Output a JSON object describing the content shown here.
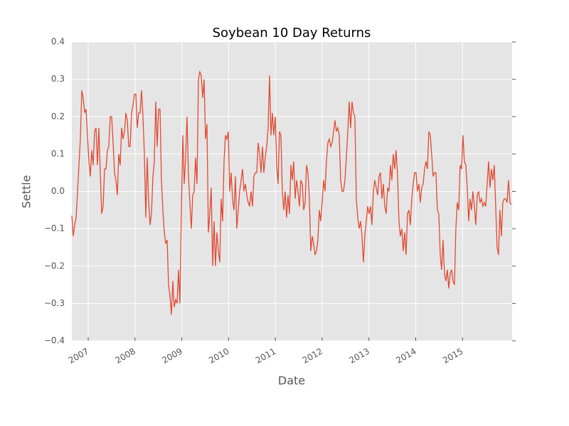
{
  "chart_data": {
    "type": "line",
    "title": "Soybean 10 Day Returns",
    "xlabel": "Date",
    "ylabel": "Settle",
    "color": "#e24a33",
    "grid": true,
    "x": [
      2006.65,
      2006.68,
      2006.711,
      2006.741,
      2006.772,
      2006.802,
      2006.832,
      2006.863,
      2006.893,
      2006.924,
      2006.954,
      2006.984,
      2007.015,
      2007.045,
      2007.076,
      2007.106,
      2007.136,
      2007.167,
      2007.197,
      2007.228,
      2007.258,
      2007.288,
      2007.319,
      2007.349,
      2007.38,
      2007.41,
      2007.44,
      2007.471,
      2007.501,
      2007.532,
      2007.562,
      2007.592,
      2007.623,
      2007.653,
      2007.684,
      2007.714,
      2007.744,
      2007.775,
      2007.805,
      2007.836,
      2007.866,
      2007.896,
      2007.927,
      2007.957,
      2007.988,
      2008.018,
      2008.048,
      2008.079,
      2008.109,
      2008.14,
      2008.17,
      2008.2,
      2008.231,
      2008.261,
      2008.292,
      2008.322,
      2008.352,
      2008.383,
      2008.413,
      2008.444,
      2008.474,
      2008.504,
      2008.535,
      2008.565,
      2008.596,
      2008.626,
      2008.656,
      2008.687,
      2008.717,
      2008.748,
      2008.778,
      2008.808,
      2008.839,
      2008.869,
      2008.9,
      2008.93,
      2008.96,
      2008.991,
      2009.021,
      2009.052,
      2009.082,
      2009.112,
      2009.143,
      2009.173,
      2009.204,
      2009.234,
      2009.264,
      2009.295,
      2009.325,
      2009.356,
      2009.386,
      2009.416,
      2009.447,
      2009.477,
      2009.508,
      2009.538,
      2009.568,
      2009.599,
      2009.629,
      2009.66,
      2009.69,
      2009.72,
      2009.751,
      2009.781,
      2009.812,
      2009.842,
      2009.872,
      2009.903,
      2009.933,
      2009.964,
      2009.994,
      2010.024,
      2010.055,
      2010.085,
      2010.116,
      2010.146,
      2010.176,
      2010.207,
      2010.237,
      2010.268,
      2010.298,
      2010.328,
      2010.359,
      2010.389,
      2010.42,
      2010.45,
      2010.48,
      2010.511,
      2010.541,
      2010.572,
      2010.602,
      2010.632,
      2010.663,
      2010.693,
      2010.724,
      2010.754,
      2010.784,
      2010.815,
      2010.845,
      2010.876,
      2010.906,
      2010.936,
      2010.967,
      2010.997,
      2011.028,
      2011.058,
      2011.088,
      2011.119,
      2011.149,
      2011.18,
      2011.21,
      2011.24,
      2011.271,
      2011.301,
      2011.332,
      2011.362,
      2011.392,
      2011.423,
      2011.453,
      2011.484,
      2011.514,
      2011.544,
      2011.575,
      2011.605,
      2011.636,
      2011.666,
      2011.696,
      2011.727,
      2011.757,
      2011.788,
      2011.818,
      2011.848,
      2011.879,
      2011.909,
      2011.94,
      2011.97,
      2012.0,
      2012.031,
      2012.061,
      2012.092,
      2012.122,
      2012.152,
      2012.183,
      2012.213,
      2012.244,
      2012.274,
      2012.304,
      2012.335,
      2012.365,
      2012.396,
      2012.426,
      2012.456,
      2012.487,
      2012.517,
      2012.548,
      2012.578,
      2012.608,
      2012.639,
      2012.669,
      2012.7,
      2012.73,
      2012.76,
      2012.791,
      2012.821,
      2012.852,
      2012.882,
      2012.912,
      2012.943,
      2012.973,
      2013.004,
      2013.034,
      2013.064,
      2013.095,
      2013.125,
      2013.156,
      2013.186,
      2013.216,
      2013.247,
      2013.277,
      2013.308,
      2013.338,
      2013.368,
      2013.399,
      2013.429,
      2013.46,
      2013.49,
      2013.52,
      2013.551,
      2013.581,
      2013.612,
      2013.642,
      2013.672,
      2013.703,
      2013.733,
      2013.764,
      2013.794,
      2013.824,
      2013.855,
      2013.885,
      2013.916,
      2013.946,
      2013.976,
      2014.007,
      2014.037,
      2014.068,
      2014.098,
      2014.128,
      2014.159,
      2014.189,
      2014.22,
      2014.25,
      2014.28,
      2014.311,
      2014.341,
      2014.372,
      2014.402,
      2014.432,
      2014.463,
      2014.493,
      2014.524,
      2014.554,
      2014.584,
      2014.615,
      2014.645,
      2014.676,
      2014.706,
      2014.736,
      2014.767,
      2014.797,
      2014.828,
      2014.858,
      2014.888,
      2014.919,
      2014.949,
      2014.98,
      2015.01,
      2015.04,
      2015.071,
      2015.101,
      2015.132,
      2015.162,
      2015.192,
      2015.223,
      2015.253,
      2015.284,
      2015.314,
      2015.344,
      2015.375,
      2015.405,
      2015.436,
      2015.466,
      2015.496,
      2015.527,
      2015.557,
      2015.588,
      2015.618,
      2015.648,
      2015.679,
      2015.709,
      2015.74,
      2015.77,
      2015.8,
      2015.831,
      2015.861,
      2015.892,
      2015.922,
      2015.952,
      2015.983,
      2016.013,
      2016.044
    ],
    "values": [
      -0.065,
      -0.12,
      -0.09,
      -0.07,
      0.0,
      0.07,
      0.14,
      0.27,
      0.25,
      0.21,
      0.22,
      0.15,
      0.08,
      0.04,
      0.11,
      0.07,
      0.16,
      0.17,
      0.07,
      0.17,
      0.05,
      -0.06,
      -0.04,
      0.06,
      0.06,
      0.11,
      0.12,
      0.2,
      0.2,
      0.13,
      0.05,
      0.03,
      -0.01,
      0.1,
      0.07,
      0.17,
      0.14,
      0.16,
      0.21,
      0.19,
      0.12,
      0.12,
      0.21,
      0.23,
      0.26,
      0.26,
      0.17,
      0.21,
      0.21,
      0.27,
      0.2,
      0.1,
      -0.07,
      0.09,
      -0.03,
      -0.09,
      -0.06,
      0.04,
      0.08,
      0.24,
      0.12,
      0.22,
      0.22,
      0.03,
      -0.05,
      -0.11,
      -0.14,
      -0.13,
      -0.25,
      -0.28,
      -0.33,
      -0.24,
      -0.31,
      -0.29,
      -0.3,
      -0.21,
      -0.3,
      -0.06,
      0.15,
      0.02,
      0.09,
      0.2,
      0.04,
      -0.03,
      -0.1,
      -0.01,
      0.0,
      0.09,
      0.02,
      0.3,
      0.32,
      0.31,
      0.25,
      0.3,
      0.14,
      0.18,
      -0.11,
      -0.06,
      0.01,
      -0.2,
      -0.08,
      -0.2,
      -0.11,
      -0.16,
      -0.19,
      -0.02,
      -0.08,
      0.08,
      0.15,
      0.14,
      0.16,
      0.0,
      0.05,
      -0.02,
      -0.05,
      0.04,
      -0.1,
      -0.05,
      0.0,
      0.03,
      0.06,
      0.0,
      0.02,
      -0.01,
      -0.03,
      -0.04,
      0.0,
      -0.04,
      0.04,
      0.05,
      0.05,
      0.13,
      0.1,
      0.05,
      0.12,
      0.05,
      0.09,
      0.12,
      0.17,
      0.31,
      0.15,
      0.21,
      0.15,
      0.2,
      0.07,
      0.02,
      0.16,
      0.15,
      0.0,
      -0.05,
      0.0,
      -0.07,
      -0.01,
      -0.06,
      0.07,
      0.03,
      0.08,
      -0.02,
      0.03,
      0.0,
      -0.04,
      0.03,
      0.02,
      -0.05,
      -0.03,
      0.07,
      0.05,
      -0.02,
      -0.16,
      -0.12,
      -0.14,
      -0.17,
      -0.16,
      -0.13,
      -0.05,
      -0.08,
      -0.03,
      0.03,
      0.0,
      0.08,
      0.13,
      0.14,
      0.12,
      0.13,
      0.16,
      0.19,
      0.16,
      0.17,
      0.15,
      0.03,
      0.0,
      0.0,
      0.03,
      0.09,
      0.16,
      0.24,
      0.17,
      0.24,
      0.21,
      0.2,
      -0.02,
      -0.07,
      -0.1,
      -0.08,
      -0.12,
      -0.19,
      -0.12,
      -0.08,
      -0.04,
      -0.06,
      -0.04,
      -0.09,
      0.0,
      0.03,
      0.01,
      -0.01,
      0.04,
      0.05,
      -0.02,
      0.02,
      -0.04,
      -0.06,
      0.01,
      0.0,
      0.07,
      0.03,
      0.1,
      0.06,
      0.11,
      0.04,
      -0.08,
      -0.12,
      -0.1,
      -0.16,
      -0.11,
      -0.17,
      -0.06,
      -0.05,
      -0.09,
      -0.02,
      0.02,
      0.05,
      0.05,
      0.0,
      0.02,
      -0.03,
      0.01,
      0.02,
      0.06,
      0.08,
      0.06,
      0.16,
      0.15,
      0.1,
      0.04,
      0.05,
      0.05,
      -0.05,
      -0.06,
      -0.17,
      -0.21,
      -0.13,
      -0.22,
      -0.24,
      -0.21,
      -0.26,
      -0.22,
      -0.21,
      -0.24,
      -0.25,
      -0.1,
      -0.03,
      -0.05,
      0.07,
      0.06,
      0.15,
      0.08,
      0.07,
      0.01,
      -0.08,
      -0.02,
      -0.05,
      0.0,
      -0.04,
      -0.09,
      -0.01,
      0.0,
      -0.03,
      -0.02,
      -0.04,
      -0.03,
      -0.04,
      0.02,
      0.08,
      0.01,
      0.06,
      0.03,
      0.07,
      -0.04,
      -0.15,
      -0.17,
      -0.05,
      -0.12,
      -0.03,
      -0.02,
      -0.02,
      -0.03,
      0.03,
      -0.03,
      -0.035
    ],
    "xlim": [
      2006.65,
      2016.06
    ],
    "xticks": [
      2007,
      2008,
      2009,
      2010,
      2011,
      2012,
      2013,
      2014,
      2015
    ],
    "ylim": [
      -0.4,
      0.4
    ],
    "yticks": [
      {
        "value": -0.4,
        "label": "−0.4"
      },
      {
        "value": -0.3,
        "label": "−0.3"
      },
      {
        "value": -0.2,
        "label": "−0.2"
      },
      {
        "value": -0.1,
        "label": "−0.1"
      },
      {
        "value": 0,
        "label": "0.0"
      },
      0.1,
      0.2,
      0.3,
      0.4
    ]
  }
}
